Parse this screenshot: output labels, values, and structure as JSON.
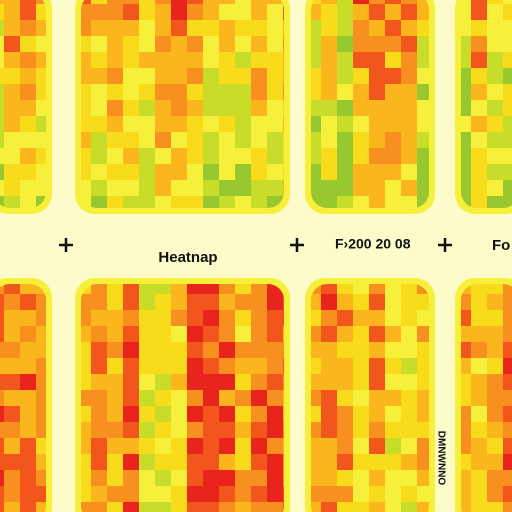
{
  "labels": {
    "center_title": "Heatnap",
    "right_title": "F›200 20 08",
    "edge_title": "Fo",
    "vertical_note": "DMNWNNO"
  }
}
